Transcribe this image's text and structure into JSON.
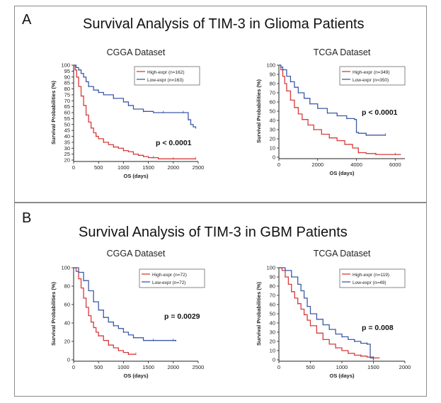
{
  "panels": [
    {
      "letter": "A",
      "title": "Survival Analysis of TIM-3 in Glioma Patients"
    },
    {
      "letter": "B",
      "title": "Survival Analysis of TIM-3 in GBM Patients"
    }
  ],
  "colors": {
    "high": "#d93a3a",
    "low": "#3c5aa8",
    "axis": "#222222"
  },
  "chart_data": [
    {
      "type": "line",
      "panel": "A",
      "title": "CGGA Dataset",
      "xlabel": "OS (days)",
      "ylabel": "Survival Probabilities (%)",
      "xlim": [
        0,
        2500
      ],
      "ylim": [
        20,
        100
      ],
      "xticks": [
        0,
        500,
        1000,
        1500,
        2000,
        2500
      ],
      "yticks": [
        20,
        25,
        30,
        35,
        40,
        45,
        50,
        55,
        60,
        65,
        70,
        75,
        80,
        85,
        90,
        95,
        100
      ],
      "pvalue": "p < 0.0001",
      "series": [
        {
          "name": "High-expr",
          "n": "(n=162)",
          "color": "high",
          "x": [
            0,
            30,
            60,
            100,
            150,
            200,
            250,
            300,
            350,
            400,
            450,
            500,
            600,
            700,
            800,
            900,
            1000,
            1100,
            1200,
            1300,
            1400,
            1500,
            1600,
            1700,
            2000,
            2300,
            2450
          ],
          "y": [
            100,
            96,
            90,
            82,
            74,
            66,
            58,
            52,
            47,
            43,
            40,
            38,
            35,
            33,
            31,
            30,
            28,
            27,
            25,
            24,
            23,
            22,
            22,
            21,
            21,
            21,
            21
          ]
        },
        {
          "name": "Low-expr",
          "n": "(n=163)",
          "color": "low",
          "x": [
            0,
            50,
            100,
            150,
            200,
            250,
            300,
            400,
            500,
            600,
            800,
            1000,
            1100,
            1200,
            1400,
            1600,
            1800,
            2000,
            2200,
            2300,
            2350,
            2400,
            2450
          ],
          "y": [
            100,
            98,
            96,
            93,
            90,
            86,
            82,
            79,
            77,
            75,
            72,
            69,
            66,
            63,
            61,
            60,
            60,
            60,
            60,
            54,
            50,
            48,
            47
          ]
        }
      ]
    },
    {
      "type": "line",
      "panel": "A",
      "title": "TCGA Dataset",
      "xlabel": "OS (days)",
      "ylabel": "Survival Probabilities (%)",
      "xlim": [
        0,
        6500
      ],
      "ylim": [
        0,
        100
      ],
      "xticks": [
        0,
        2000,
        4000,
        6000
      ],
      "yticks": [
        0,
        10,
        20,
        30,
        40,
        50,
        60,
        70,
        80,
        90,
        100
      ],
      "pvalue": "p < 0.0001",
      "series": [
        {
          "name": "High-expr",
          "n": "(n=349)",
          "color": "high",
          "x": [
            0,
            100,
            200,
            300,
            400,
            600,
            800,
            1000,
            1200,
            1500,
            1800,
            2200,
            2600,
            3000,
            3400,
            3800,
            4100,
            4500,
            5000,
            5500,
            6000,
            6300
          ],
          "y": [
            100,
            95,
            88,
            80,
            72,
            62,
            54,
            47,
            41,
            35,
            30,
            25,
            21,
            18,
            14,
            10,
            5,
            4,
            3,
            3,
            3,
            3
          ]
        },
        {
          "name": "Low-expr",
          "n": "(n=350)",
          "color": "low",
          "x": [
            0,
            100,
            200,
            400,
            600,
            800,
            1000,
            1300,
            1600,
            2000,
            2500,
            3000,
            3500,
            3900,
            4000,
            4100,
            4500,
            5000,
            5500
          ],
          "y": [
            100,
            98,
            95,
            88,
            82,
            76,
            70,
            64,
            58,
            53,
            48,
            45,
            42,
            41,
            27,
            26,
            24,
            24,
            24
          ]
        }
      ]
    },
    {
      "type": "line",
      "panel": "B",
      "title": "CGGA Dataset",
      "xlabel": "OS (days)",
      "ylabel": "Survival Probabilities (%)",
      "xlim": [
        0,
        2500
      ],
      "ylim": [
        0,
        100
      ],
      "xticks": [
        0,
        500,
        1000,
        1500,
        2000,
        2500
      ],
      "yticks": [
        0,
        20,
        40,
        60,
        80,
        100
      ],
      "pvalue": "p = 0.0029",
      "series": [
        {
          "name": "High-expr",
          "n": "(n=72)",
          "color": "high",
          "x": [
            0,
            50,
            100,
            150,
            200,
            250,
            300,
            350,
            400,
            450,
            500,
            600,
            700,
            800,
            900,
            1000,
            1100,
            1200,
            1250
          ],
          "y": [
            100,
            96,
            88,
            78,
            67,
            57,
            48,
            41,
            35,
            30,
            26,
            21,
            16,
            13,
            10,
            8,
            6,
            6,
            6
          ]
        },
        {
          "name": "Low-expr",
          "n": "(n=72)",
          "color": "low",
          "x": [
            0,
            100,
            200,
            300,
            400,
            500,
            600,
            700,
            800,
            900,
            1000,
            1100,
            1200,
            1400,
            1600,
            1800,
            2000,
            2050
          ],
          "y": [
            100,
            95,
            86,
            75,
            63,
            54,
            46,
            41,
            37,
            34,
            30,
            27,
            24,
            21,
            21,
            21,
            21,
            20
          ]
        }
      ]
    },
    {
      "type": "line",
      "panel": "B",
      "title": "TCGA Dataset",
      "xlabel": "OS (days)",
      "ylabel": "Survival Probabilities (%)",
      "xlim": [
        0,
        2000
      ],
      "ylim": [
        0,
        100
      ],
      "xticks": [
        0,
        500,
        1000,
        1500,
        2000
      ],
      "yticks": [
        0,
        10,
        20,
        30,
        40,
        50,
        60,
        70,
        80,
        90,
        100
      ],
      "pvalue": "p = 0.008",
      "series": [
        {
          "name": "High-expr",
          "n": "(n=119)",
          "color": "high",
          "x": [
            0,
            50,
            100,
            150,
            200,
            250,
            300,
            350,
            400,
            450,
            500,
            600,
            700,
            800,
            900,
            1000,
            1100,
            1200,
            1300,
            1400,
            1500,
            1600
          ],
          "y": [
            100,
            97,
            90,
            82,
            74,
            67,
            61,
            55,
            49,
            43,
            37,
            29,
            22,
            17,
            13,
            10,
            7,
            5,
            4,
            3,
            2,
            2
          ]
        },
        {
          "name": "Low-expr",
          "n": "(n=49)",
          "color": "low",
          "x": [
            0,
            100,
            200,
            300,
            350,
            400,
            450,
            500,
            600,
            700,
            800,
            900,
            1000,
            1100,
            1200,
            1300,
            1400,
            1450,
            1500
          ],
          "y": [
            100,
            97,
            90,
            82,
            75,
            67,
            58,
            50,
            44,
            38,
            33,
            28,
            25,
            22,
            20,
            18,
            17,
            2,
            0
          ]
        }
      ]
    }
  ]
}
